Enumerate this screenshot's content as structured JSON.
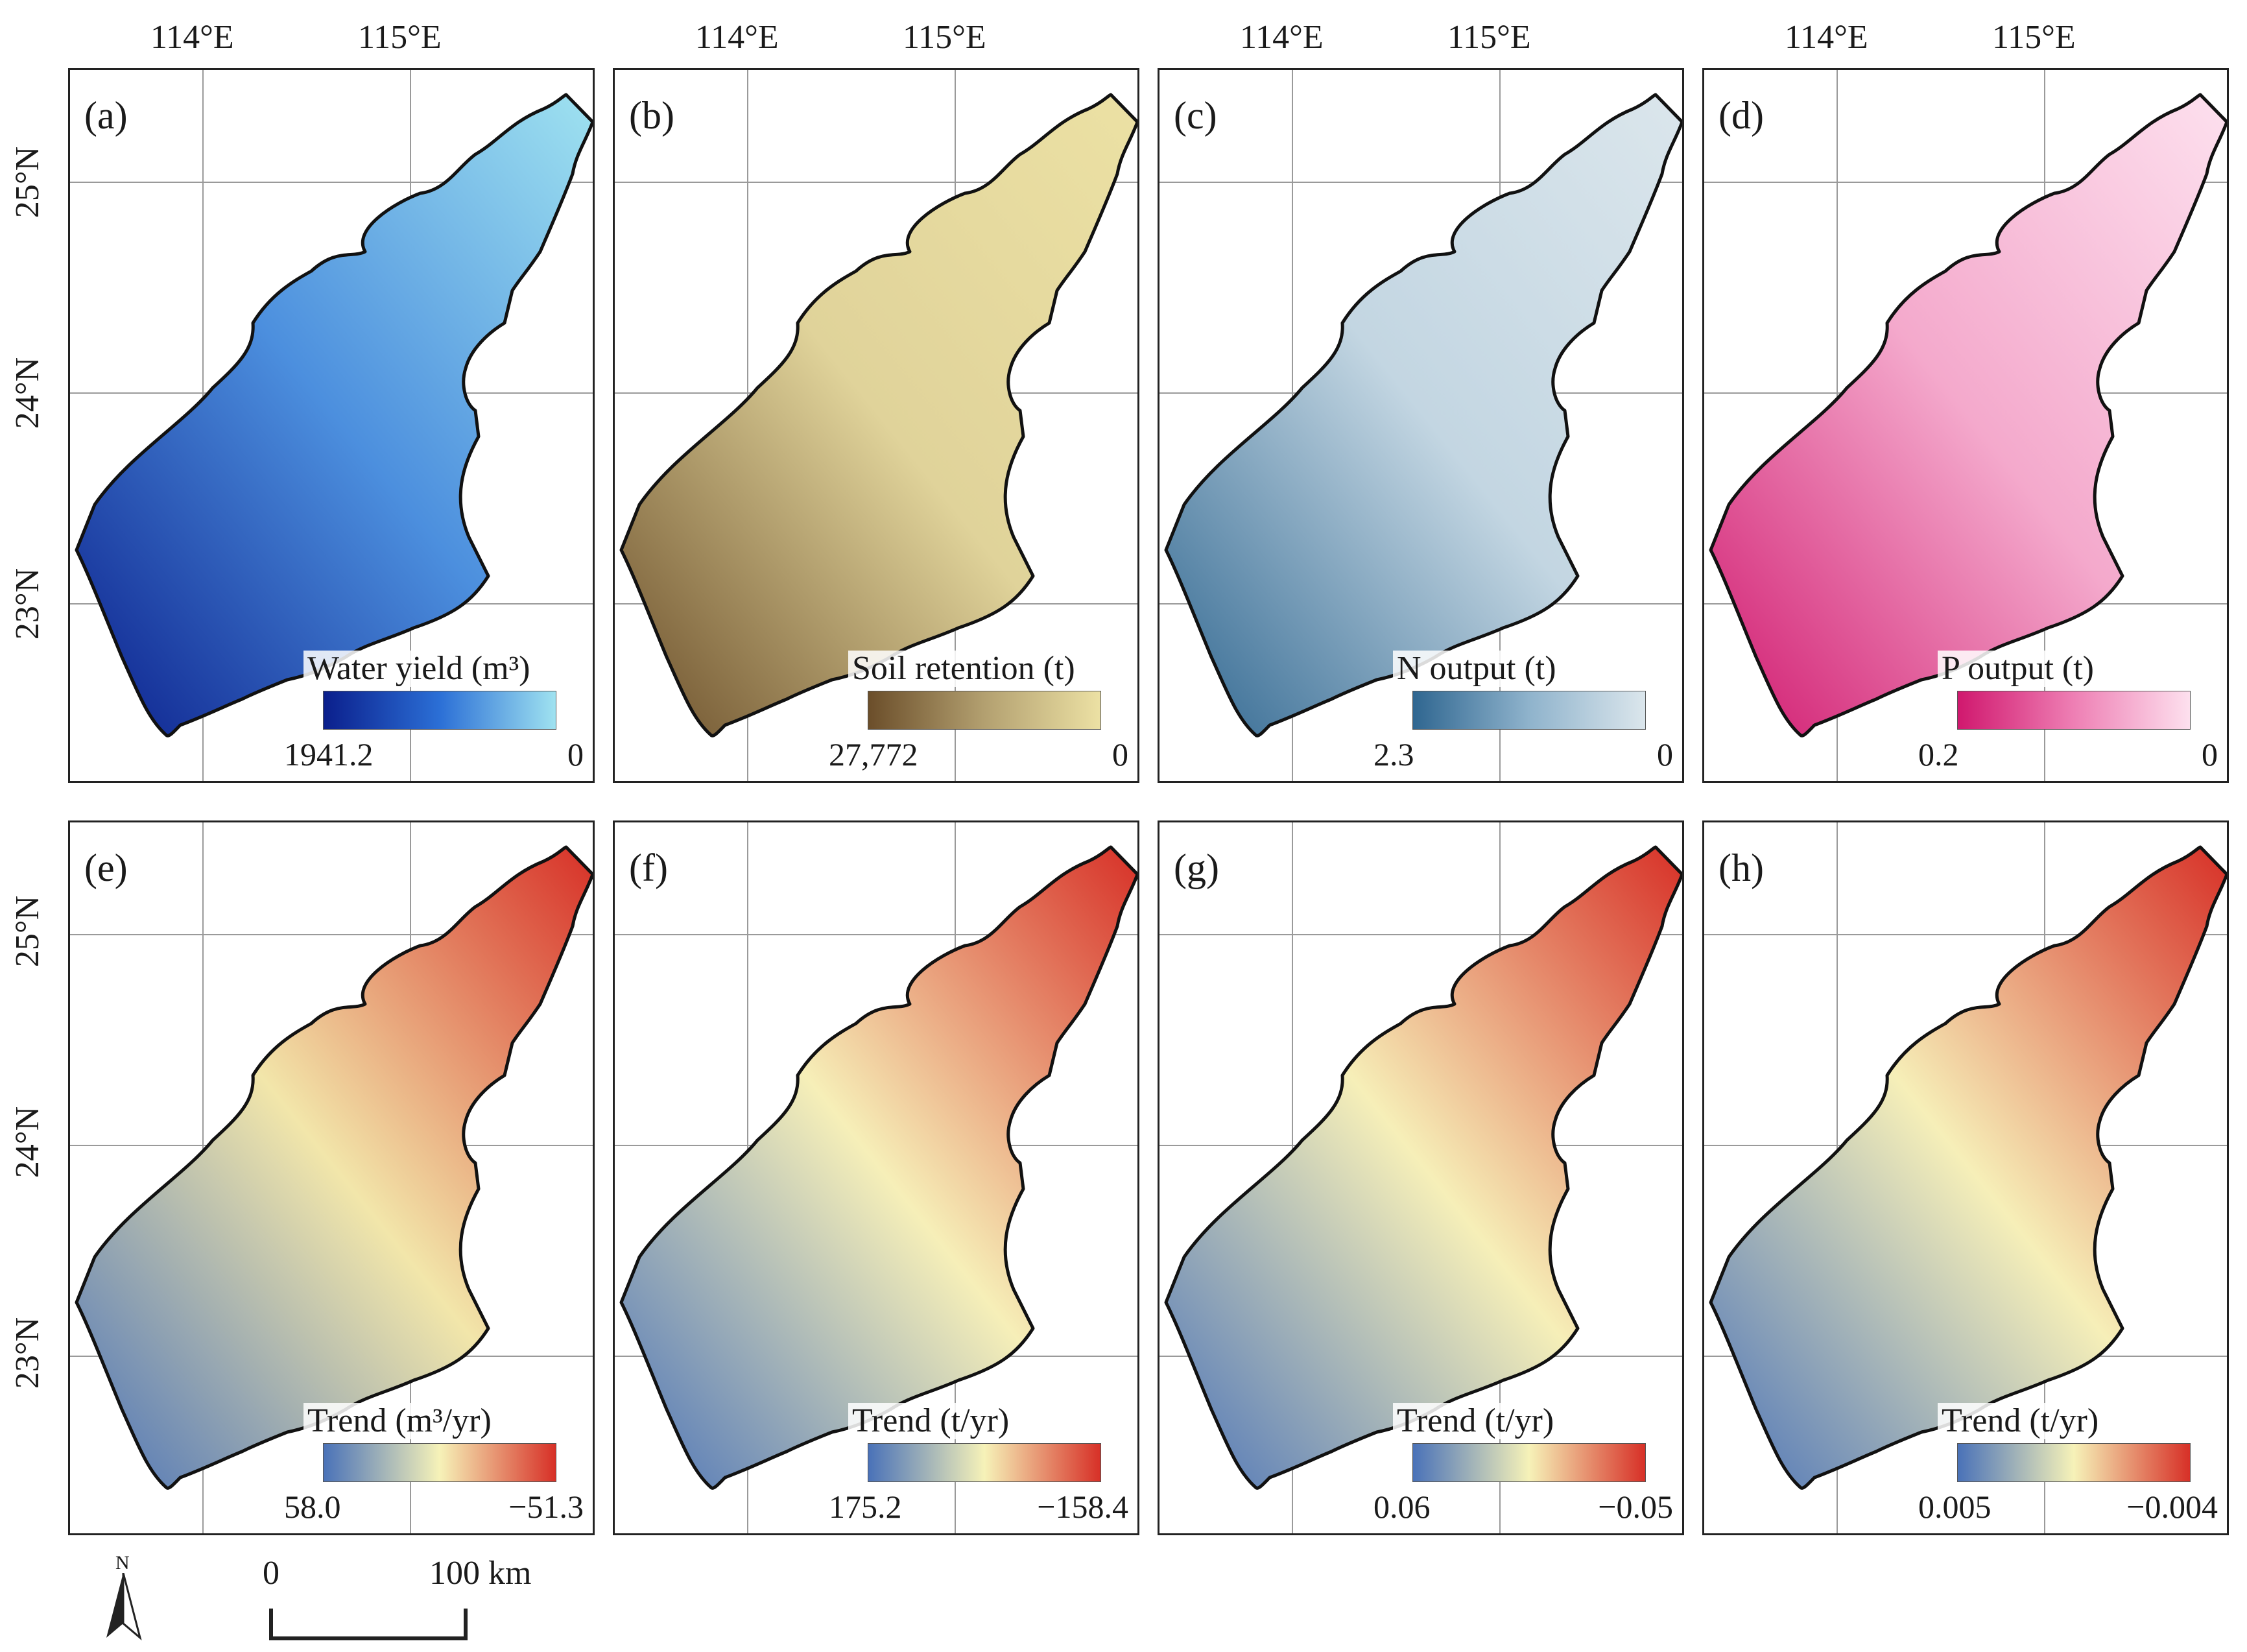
{
  "axes": {
    "lon_labels": [
      "114°E",
      "115°E"
    ],
    "lat_labels": [
      "25°N",
      "24°N",
      "23°N"
    ]
  },
  "panels": [
    {
      "label": "(a)",
      "legend_title": "Water yield (m³)",
      "min_label": "1941.2",
      "max_label": "0",
      "ramp": [
        "#0b1f8c",
        "#2b6fd6",
        "#9fe2f0"
      ],
      "fill": "#4c8fde"
    },
    {
      "label": "(b)",
      "legend_title": "Soil retention (t)",
      "min_label": "27,772",
      "max_label": "0",
      "ramp": [
        "#6b4e2a",
        "#b3a070",
        "#ece1a4"
      ],
      "fill": "#e0d39a"
    },
    {
      "label": "(c)",
      "legend_title": "N output (t)",
      "min_label": "2.3",
      "max_label": "0",
      "ramp": [
        "#2f6690",
        "#8fb3cc",
        "#dbe6ec"
      ],
      "fill": "#c3d6e2"
    },
    {
      "label": "(d)",
      "legend_title": "P output (t)",
      "min_label": "0.2",
      "max_label": "0",
      "ramp": [
        "#d0186e",
        "#ee7fb4",
        "#fde0ee"
      ],
      "fill": "#f4a9cc"
    },
    {
      "label": "(e)",
      "legend_title": "Trend (m³/yr)",
      "min_label": "58.0",
      "max_label": "−51.3",
      "ramp": [
        "#4a72b8",
        "#f6f2b8",
        "#d73027"
      ],
      "fill": "#f2e6aa"
    },
    {
      "label": "(f)",
      "legend_title": "Trend (t/yr)",
      "min_label": "175.2",
      "max_label": "−158.4",
      "ramp": [
        "#4a72b8",
        "#f6f2b8",
        "#d73027"
      ],
      "fill": "#f6efb8"
    },
    {
      "label": "(g)",
      "legend_title": "Trend (t/yr)",
      "min_label": "0.06",
      "max_label": "−0.05",
      "ramp": [
        "#4a72b8",
        "#f6f2b8",
        "#d73027"
      ],
      "fill": "#f6efb8"
    },
    {
      "label": "(h)",
      "legend_title": "Trend (t/yr)",
      "min_label": "0.005",
      "max_label": "−0.004",
      "ramp": [
        "#4a72b8",
        "#f6f2b8",
        "#d73027"
      ],
      "fill": "#f6efb8"
    }
  ],
  "north_arrow": {
    "label": "N"
  },
  "scale_bar": {
    "start": "0",
    "end": "100 km"
  }
}
